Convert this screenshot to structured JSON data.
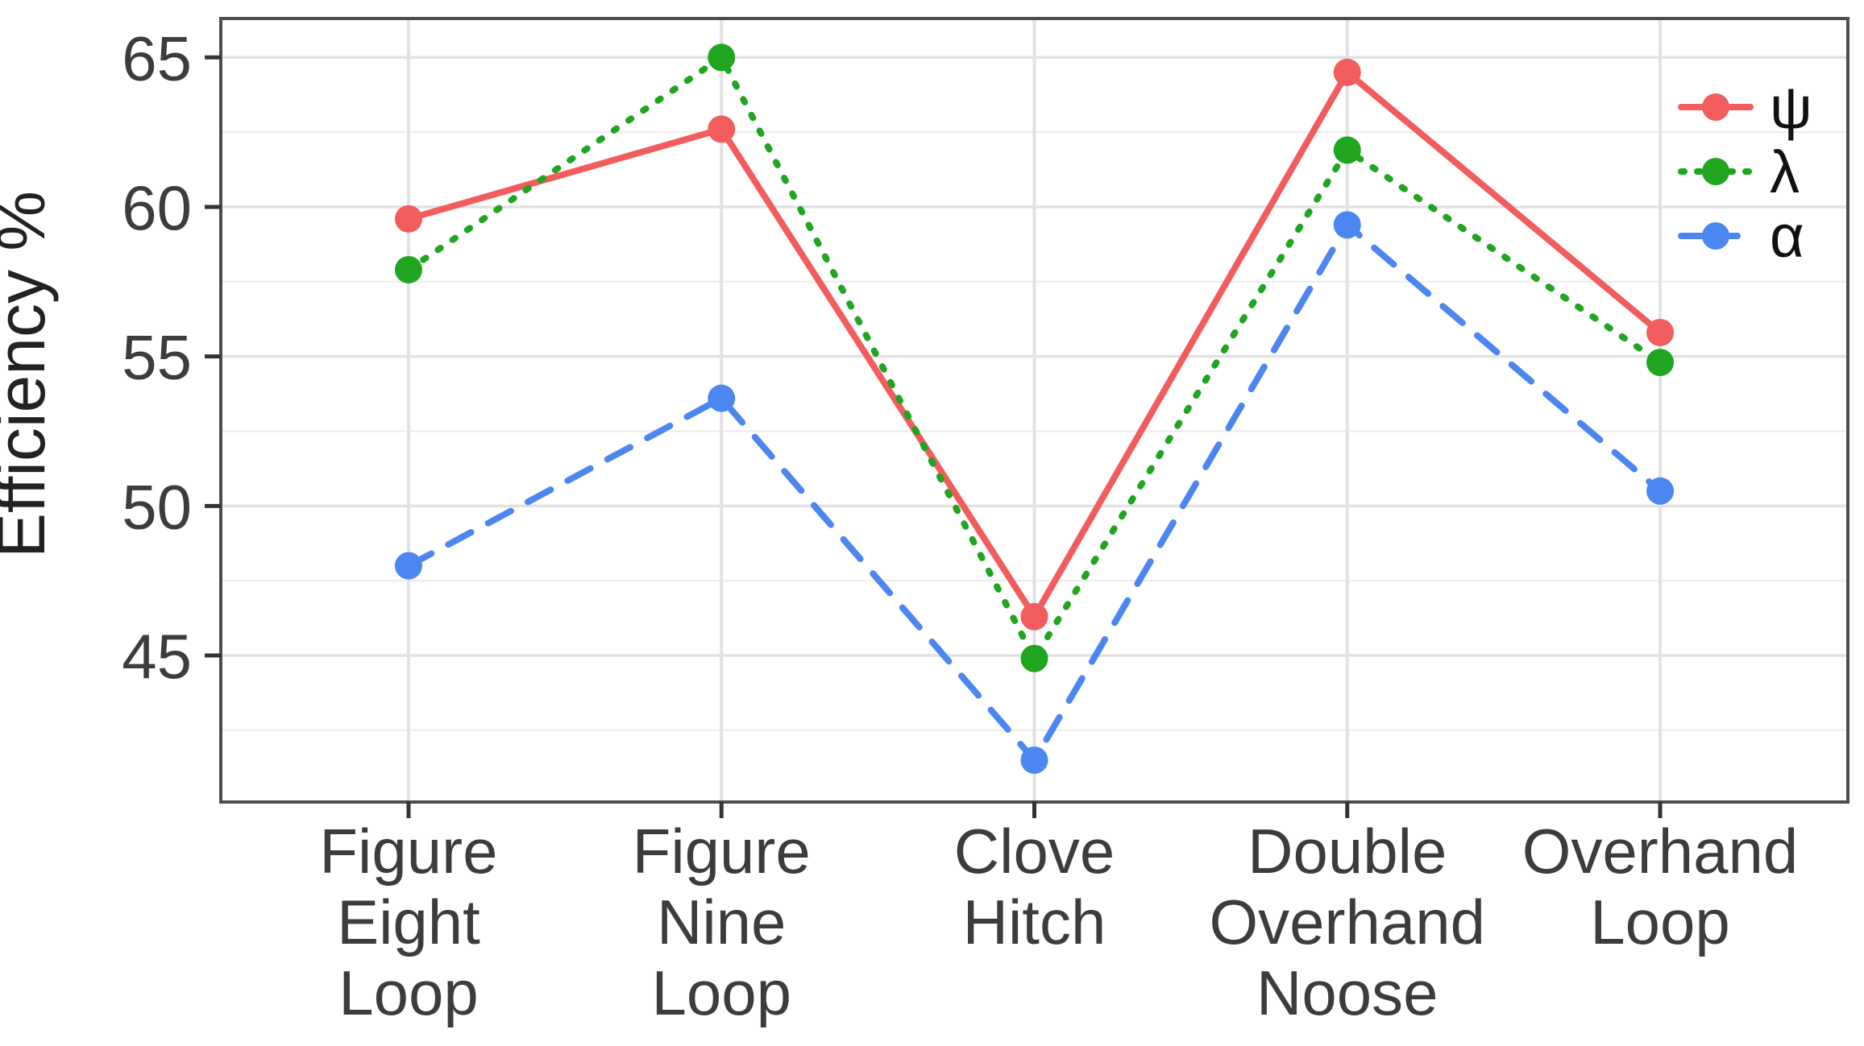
{
  "chart_data": {
    "type": "line",
    "title": "",
    "xlabel": "",
    "ylabel": "Efficiency %",
    "categories": [
      "Figure Eight Loop",
      "Figure Nine Loop",
      "Clove Hitch",
      "Double Overhand Noose",
      "Overhand Loop"
    ],
    "category_label_lines": [
      [
        "Figure",
        "Eight",
        "Loop"
      ],
      [
        "Figure",
        "Nine",
        "Loop"
      ],
      [
        "Clove",
        "Hitch"
      ],
      [
        "Double",
        "Overhand",
        "Noose"
      ],
      [
        "Overhand",
        "Loop"
      ]
    ],
    "series": [
      {
        "id": "psi",
        "name": "ψ",
        "color": "#f25c5c",
        "dash": "solid",
        "values": [
          59.6,
          62.6,
          46.3,
          64.5,
          55.8
        ]
      },
      {
        "id": "lambda",
        "name": "λ",
        "color": "#1fa51f",
        "dash": "dotted",
        "values": [
          57.9,
          65.0,
          44.9,
          61.9,
          54.8
        ]
      },
      {
        "id": "alpha",
        "name": "α",
        "color": "#4c86f0",
        "dash": "dashed",
        "values": [
          48.0,
          53.6,
          41.5,
          59.4,
          50.5
        ]
      }
    ],
    "y_major_ticks": [
      45,
      50,
      55,
      60,
      65
    ],
    "y_minor_gridlines": [
      42.5,
      47.5,
      52.5,
      57.5,
      62.5
    ],
    "ylim": [
      40.1,
      66.3
    ],
    "grid": true,
    "legend_position": "top-right",
    "colors": {
      "panel_border": "#4d4d4d",
      "major_grid": "#e2e2e2",
      "minor_grid": "#efefef",
      "tick_mark": "#333333",
      "background": "#ffffff"
    }
  }
}
